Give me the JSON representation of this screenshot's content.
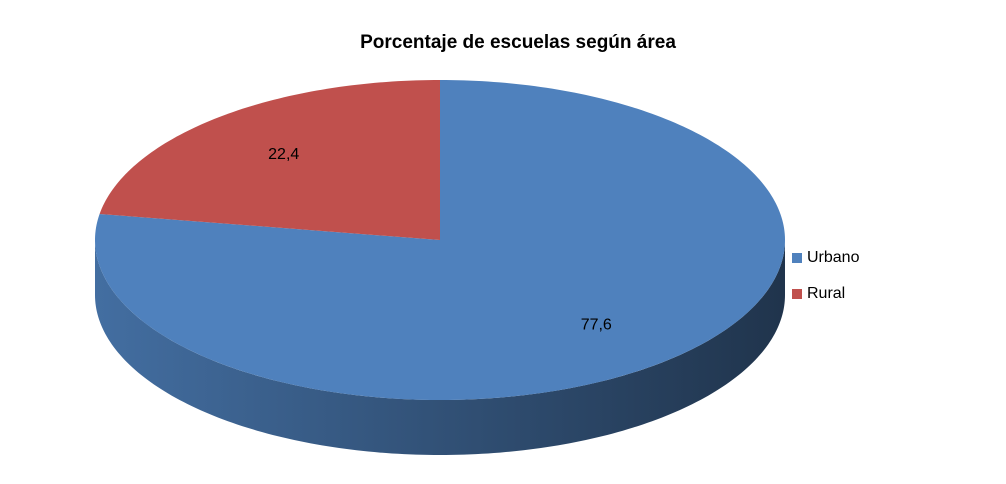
{
  "chart_data": {
    "type": "pie",
    "title": "Porcentaje de escuelas según área",
    "categories": [
      "Urbano",
      "Rural"
    ],
    "values": [
      77.6,
      22.4
    ],
    "value_labels": [
      "77,6",
      "22,4"
    ],
    "colors": [
      "#4f81bd",
      "#c0504d"
    ],
    "legend": "right",
    "three_d": true
  }
}
